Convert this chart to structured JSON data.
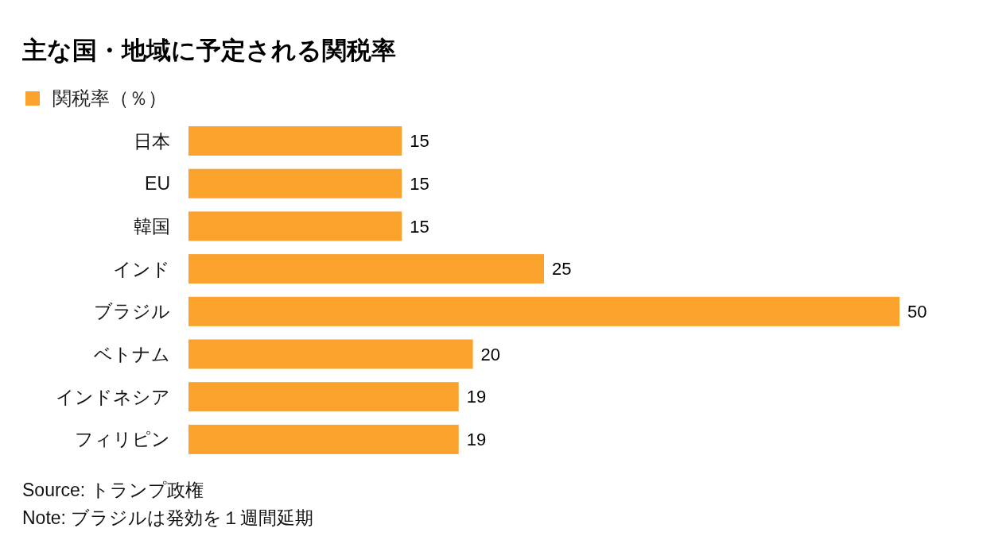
{
  "chart_data": {
    "type": "bar",
    "orientation": "horizontal",
    "title": "主な国・地域に予定される関税率",
    "categories": [
      "日本",
      "EU",
      "韓国",
      "インド",
      "ブラジル",
      "ベトナム",
      "インドネシア",
      "フィリピン"
    ],
    "series": [
      {
        "name": "関税率（％）",
        "color": "#fba22d",
        "values": [
          15,
          15,
          15,
          25,
          50,
          20,
          19,
          19
        ]
      }
    ],
    "data_labels": true,
    "legend": "top left",
    "annotations": [
      "Source: トランプ政権",
      "Note: ブラジルは発効を１週間延期"
    ]
  }
}
